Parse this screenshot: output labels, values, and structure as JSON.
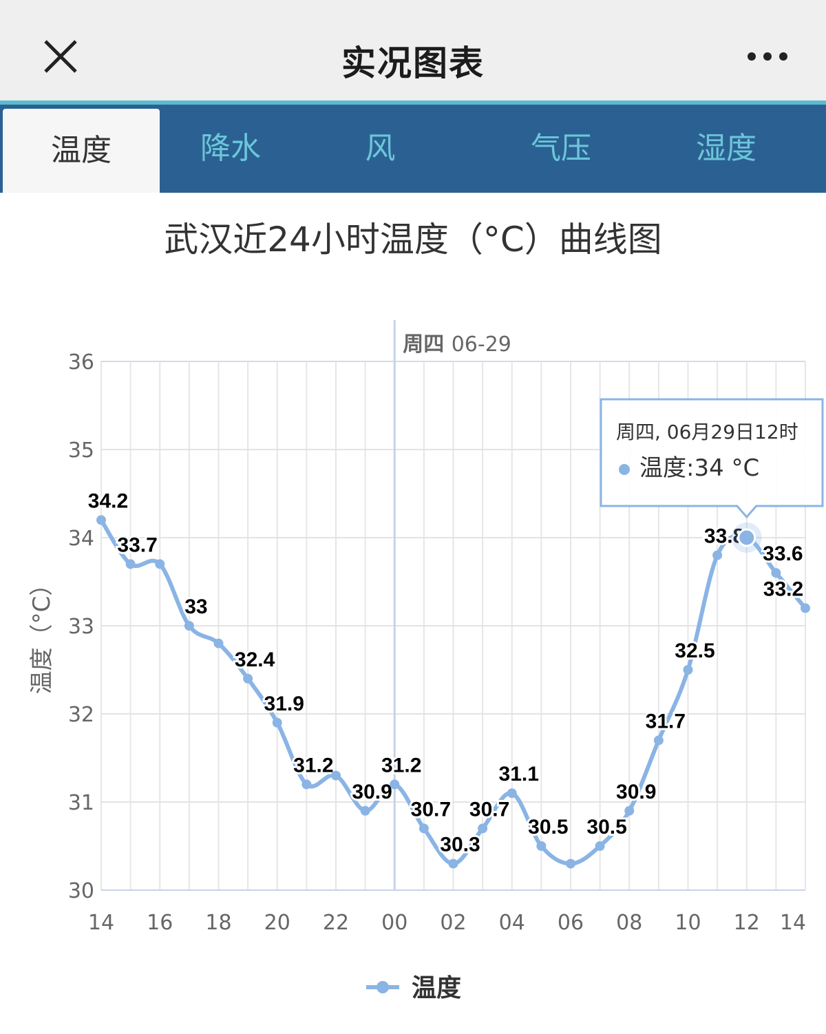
{
  "header": {
    "title": "实况图表",
    "close_icon": "close-icon",
    "more_icon": "more-dots-icon"
  },
  "tabs": [
    {
      "label": "温度",
      "active": true
    },
    {
      "label": "降水",
      "active": false
    },
    {
      "label": "风",
      "active": false
    },
    {
      "label": "气压",
      "active": false
    },
    {
      "label": "湿度",
      "active": false
    }
  ],
  "colors": {
    "series": "#8ab4e4",
    "tab_bar": "#2b6192",
    "tab_text": "#6cc6da",
    "accent_line": "#5bbbd0"
  },
  "chart_data": {
    "type": "line",
    "title": "武汉近24小时温度（°C）曲线图",
    "ylabel": "温度（°C）",
    "xlabel": "",
    "ylim": [
      30,
      36
    ],
    "yticks": [
      "30",
      "31",
      "32",
      "33",
      "34",
      "35",
      "36"
    ],
    "xticks": [
      "14",
      "16",
      "18",
      "20",
      "22",
      "00",
      "02",
      "04",
      "06",
      "08",
      "10",
      "12",
      "14"
    ],
    "grid": true,
    "day_marker": {
      "at": "00",
      "label_bold": "周四",
      "label": "06-29"
    },
    "legend": {
      "position": "bottom-center",
      "label": "温度"
    },
    "tooltip": {
      "title": "周四, 06月29日12时",
      "text": "温度:34 °C",
      "point_index": 22
    },
    "series": [
      {
        "name": "温度",
        "hours": [
          "14",
          "15",
          "16",
          "17",
          "18",
          "19",
          "20",
          "21",
          "22",
          "23",
          "00",
          "01",
          "02",
          "03",
          "04",
          "05",
          "06",
          "07",
          "08",
          "09",
          "10",
          "11",
          "12",
          "13",
          "14"
        ],
        "values": [
          34.2,
          33.7,
          33.7,
          33.0,
          32.8,
          32.4,
          31.9,
          31.2,
          31.3,
          30.9,
          31.2,
          30.7,
          30.3,
          30.7,
          31.1,
          30.5,
          30.3,
          30.5,
          30.9,
          31.7,
          32.5,
          33.8,
          34.0,
          33.6,
          33.2
        ],
        "labels": [
          "34.2",
          "33.7",
          "",
          "33",
          "",
          "32.4",
          "31.9",
          "31.2",
          "",
          "30.9",
          "31.2",
          "30.7",
          "30.3",
          "30.7",
          "31.1",
          "30.5",
          "",
          "30.5",
          "30.9",
          "31.7",
          "32.5",
          "33.8",
          "",
          "33.6",
          "33.2"
        ]
      }
    ]
  }
}
